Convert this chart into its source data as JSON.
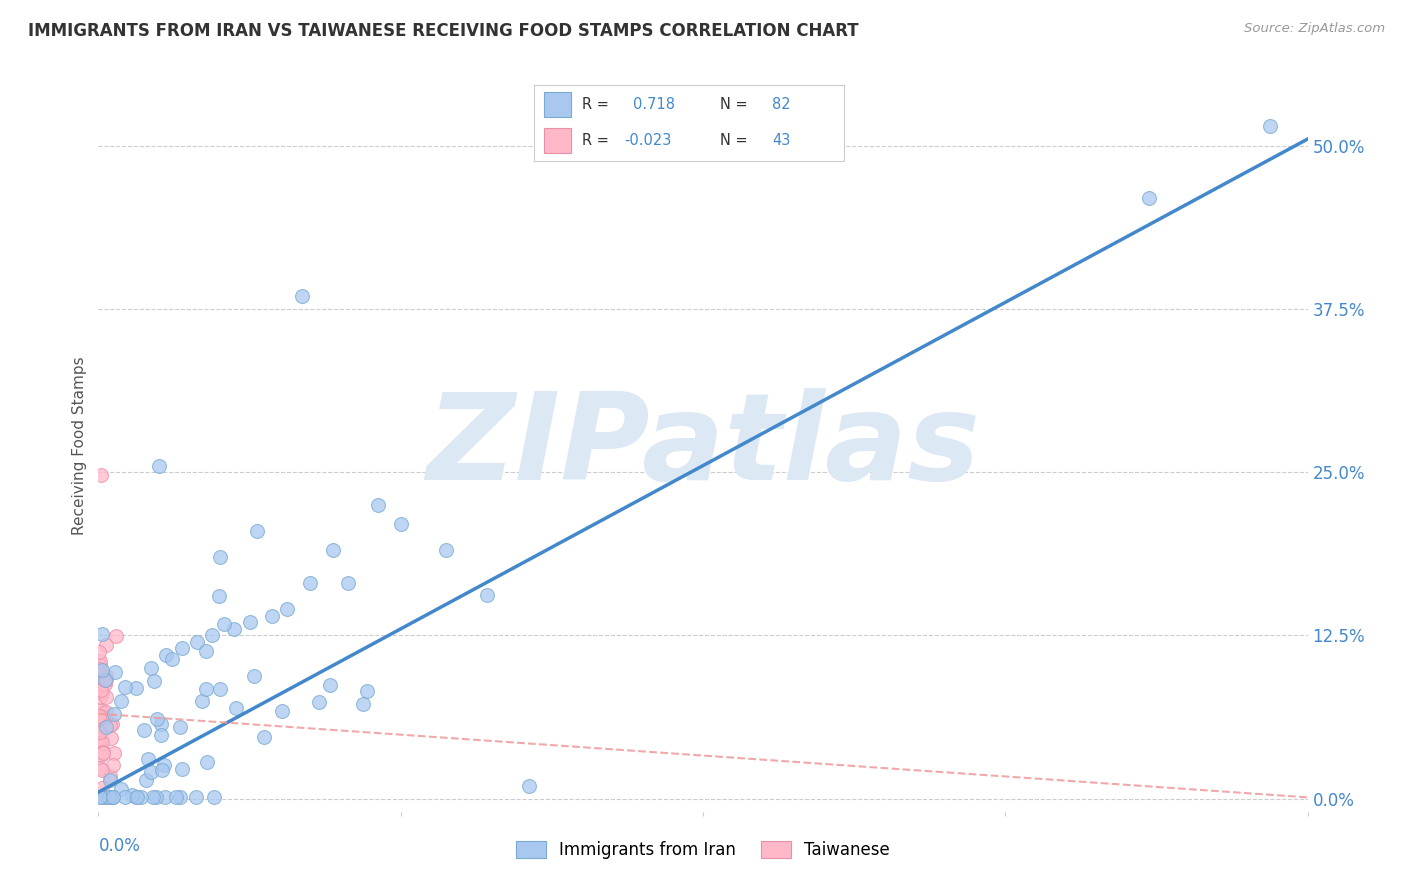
{
  "title": "IMMIGRANTS FROM IRAN VS TAIWANESE RECEIVING FOOD STAMPS CORRELATION CHART",
  "source": "Source: ZipAtlas.com",
  "ylabel": "Receiving Food Stamps",
  "watermark": "ZIPatlas",
  "blue_R": 0.718,
  "blue_N": 82,
  "pink_R": -0.023,
  "pink_N": 43,
  "blue_color": "#a8c8f0",
  "blue_edge_color": "#7aaad0",
  "pink_color": "#ffb8c8",
  "pink_edge_color": "#e890a8",
  "blue_line_color": "#4488cc",
  "pink_line_color": "#ee9999",
  "ytick_labels": [
    "0.0%",
    "12.5%",
    "25.0%",
    "37.5%",
    "50.0%"
  ],
  "ytick_vals": [
    0.0,
    0.125,
    0.25,
    0.375,
    0.5
  ],
  "xlim": [
    0.0,
    0.8
  ],
  "ylim": [
    -0.01,
    0.55
  ],
  "legend_label_blue": "Immigrants from Iran",
  "legend_label_pink": "Taiwanese",
  "background_color": "#ffffff",
  "grid_color": "#cccccc",
  "title_color": "#333333",
  "axis_tick_color": "#4488cc",
  "watermark_color": "#dde8f5",
  "blue_slope": 0.625,
  "blue_intercept": 0.005,
  "pink_slope": -0.08,
  "pink_intercept": 0.065
}
